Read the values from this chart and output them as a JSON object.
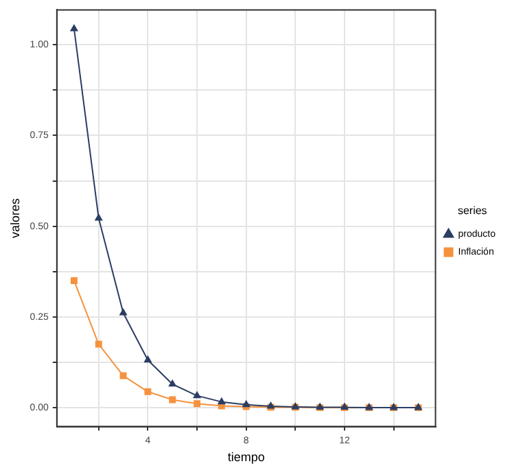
{
  "chart_data": {
    "type": "line",
    "xlabel": "tiempo",
    "ylabel": "valores",
    "legend_title": "series",
    "x": [
      1,
      2,
      3,
      4,
      5,
      6,
      7,
      8,
      9,
      10,
      11,
      12,
      13,
      14,
      15
    ],
    "series": [
      {
        "name": "producto",
        "color": "#2b3d63",
        "marker": "triangle",
        "values": [
          1.044,
          0.522,
          0.261,
          0.131,
          0.065,
          0.033,
          0.016,
          0.008,
          0.004,
          0.002,
          0.001,
          0.001,
          0,
          0,
          0
        ]
      },
      {
        "name": "Inflación",
        "color": "#f5923e",
        "marker": "square",
        "values": [
          0.35,
          0.175,
          0.088,
          0.044,
          0.022,
          0.011,
          0.005,
          0.003,
          0.001,
          0.001,
          0,
          0,
          0,
          0,
          0
        ]
      }
    ],
    "xlim": [
      0.3,
      15.7
    ],
    "ylim": [
      -0.052,
      1.096
    ],
    "xticks": [
      {
        "value": 2,
        "label": null
      },
      4,
      {
        "value": 6,
        "label": null
      },
      8,
      {
        "value": 10,
        "label": null
      },
      12,
      {
        "value": 14,
        "label": null
      }
    ],
    "yticks": [
      {
        "value": 0,
        "label": "0.00"
      },
      {
        "value": 0.125,
        "label": null
      },
      {
        "value": 0.25,
        "label": "0.25"
      },
      {
        "value": 0.375,
        "label": null
      },
      {
        "value": 0.5,
        "label": "0.50"
      },
      {
        "value": 0.625,
        "label": null
      },
      {
        "value": 0.75,
        "label": "0.75"
      },
      {
        "value": 0.875,
        "label": null
      },
      {
        "value": 1,
        "label": "1.00"
      }
    ],
    "grid": true,
    "legend": "right",
    "line_style": "solid"
  }
}
